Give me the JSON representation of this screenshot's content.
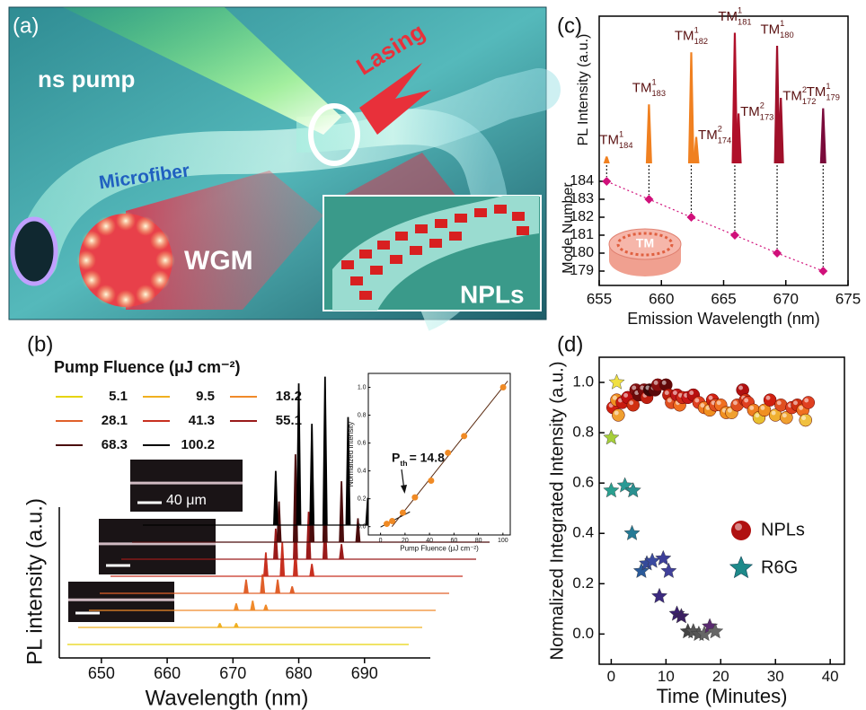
{
  "illustration": {
    "label": "(a)",
    "pump": "ns pump",
    "lasing": "Lasing",
    "fiber": "Microfiber",
    "wgm": "WGM",
    "npls": "NPLs"
  },
  "chart_data": [
    {
      "type": "modes",
      "label": "(c)",
      "xlabel": "Emission Wavelength (nm)",
      "ylabel": "Mode Number",
      "spectrum_ylabel": "PL Intensity (a.u.)",
      "xlim": [
        655,
        675
      ],
      "xticks": [
        655,
        660,
        665,
        670,
        675
      ],
      "ylim": [
        178.2,
        184.6
      ],
      "yticks": [
        179,
        180,
        181,
        182,
        183,
        184
      ],
      "spectrum": {
        "x": [
          655.6,
          659.0,
          662.4,
          662.8,
          665.9,
          666.2,
          669.3,
          669.6,
          673.0
        ],
        "values": [
          0.05,
          0.45,
          0.85,
          0.2,
          1.0,
          0.38,
          0.9,
          0.5,
          0.42
        ],
        "colors": [
          "#f08020",
          "#f08020",
          "#f08020",
          "#f08020",
          "#b0102a",
          "#b0102a",
          "#a0102a",
          "#a0102a",
          "#7a0a3a"
        ]
      },
      "peak_labels": [
        {
          "text": "TM",
          "sub": "184",
          "sup": "1"
        },
        {
          "text": "TM",
          "sub": "183",
          "sup": "1"
        },
        {
          "text": "TM",
          "sub": "182",
          "sup": "1"
        },
        {
          "text": "TM",
          "sub": "174",
          "sup": "2"
        },
        {
          "text": "TM",
          "sub": "181",
          "sup": "1"
        },
        {
          "text": "TM",
          "sub": "173",
          "sup": "2"
        },
        {
          "text": "TM",
          "sub": "180",
          "sup": "1"
        },
        {
          "text": "TM",
          "sub": "172",
          "sup": "2"
        },
        {
          "text": "TM",
          "sub": "179",
          "sup": "1"
        }
      ],
      "x": [
        655.6,
        659.0,
        662.4,
        665.9,
        669.3,
        673.0
      ],
      "values": [
        184,
        183,
        182,
        181,
        180,
        179
      ],
      "color": "#d0107a",
      "inset_label": "TM"
    },
    {
      "type": "waterfall",
      "label": "(b)",
      "xlabel": "Wavelength (nm)",
      "ylabel": "PL intensity (a.u.)",
      "legend_title": "Pump Fluence (μJ cm⁻²)",
      "scale_bar": "40 μm",
      "xlim": [
        643.6,
        700
      ],
      "xticks": [
        650,
        660,
        670,
        680,
        690
      ],
      "series": [
        {
          "name": "5.1",
          "color": "#e6d40a",
          "x": [],
          "values": []
        },
        {
          "name": "9.5",
          "color": "#f0b020",
          "x": [
            668,
            670.5
          ],
          "values": [
            0.06,
            0.06
          ]
        },
        {
          "name": "18.2",
          "color": "#f08a2a",
          "x": [
            670.5,
            673,
            675
          ],
          "values": [
            0.1,
            0.14,
            0.08
          ]
        },
        {
          "name": "28.1",
          "color": "#e0602a",
          "x": [
            672,
            674.5,
            676.8,
            679
          ],
          "values": [
            0.2,
            0.28,
            0.2,
            0.1
          ]
        },
        {
          "name": "41.3",
          "color": "#c83020",
          "x": [
            675,
            677.5,
            679.5,
            682
          ],
          "values": [
            0.35,
            0.5,
            0.4,
            0.18
          ]
        },
        {
          "name": "55.1",
          "color": "#9a1a1a",
          "x": [
            676.5,
            679.5,
            681.5,
            684,
            686.5
          ],
          "values": [
            0.45,
            0.8,
            0.7,
            0.55,
            0.22
          ]
        },
        {
          "name": "68.3",
          "color": "#4a0c0c",
          "x": [
            677,
            679.5,
            682,
            684,
            686.5,
            689
          ],
          "values": [
            0.6,
            1.3,
            1.0,
            1.4,
            0.9,
            0.35
          ]
        },
        {
          "name": "100.2",
          "color": "#000000",
          "x": [
            676.5,
            680,
            682,
            684,
            687.5,
            690.5
          ],
          "values": [
            0.8,
            2.1,
            1.5,
            2.2,
            1.6,
            0.4
          ]
        }
      ]
    },
    {
      "type": "scatter",
      "xlabel": "Pump Fluence (μJ cm⁻²)",
      "ylabel": "Normalized Intensity",
      "xlim": [
        -10,
        106
      ],
      "xticks": [
        0,
        20,
        40,
        60,
        80,
        100
      ],
      "ylim": [
        -0.06,
        1.1
      ],
      "yticks": [
        {
          "value": 0,
          "label": "0.0"
        },
        0.2,
        0.4,
        0.6,
        0.8,
        {
          "value": 1,
          "label": "1.0"
        }
      ],
      "x": [
        5.1,
        9.5,
        18.2,
        28.1,
        41.3,
        55.1,
        68.3,
        100.2
      ],
      "values": [
        0.02,
        0.04,
        0.1,
        0.21,
        0.33,
        0.53,
        0.65,
        1.0
      ],
      "color": "#f08a24",
      "annotation": {
        "text": "P",
        "sub": "th",
        "rest": "= 14.8"
      }
    },
    {
      "type": "scatter",
      "label": "(d)",
      "xlabel": "Time (Minutes)",
      "ylabel": "Normalized Integrated Intensity (a.u.)",
      "xlim": [
        -2.2,
        42.6
      ],
      "xticks": [
        0,
        10,
        20,
        30,
        40
      ],
      "ylim": [
        -0.12,
        1.1
      ],
      "yticks": [
        {
          "value": 0,
          "label": "0.0"
        },
        0.2,
        0.4,
        0.6,
        0.8,
        {
          "value": 1,
          "label": "1.0"
        }
      ],
      "legend": "right",
      "series": [
        {
          "name": "NPLs",
          "color": "#b01010",
          "marker": "sphere",
          "x": [
            0.3,
            1,
            1.3,
            2,
            3,
            4,
            4.5,
            5,
            6,
            6.5,
            7,
            8,
            8.5,
            10,
            10.5,
            11,
            12,
            12.5,
            13,
            14,
            15,
            16,
            17,
            18,
            18.5,
            19,
            20,
            21,
            22,
            23,
            24,
            24.5,
            25,
            26,
            27,
            28,
            29,
            30,
            31,
            32,
            33,
            34,
            35,
            35.5,
            36
          ],
          "values": [
            0.9,
            0.93,
            0.87,
            0.92,
            0.94,
            0.91,
            0.97,
            0.95,
            0.97,
            0.94,
            0.97,
            0.97,
            0.99,
            0.99,
            0.95,
            0.92,
            0.95,
            0.91,
            0.94,
            0.94,
            0.95,
            0.92,
            0.9,
            0.89,
            0.93,
            0.91,
            0.91,
            0.88,
            0.88,
            0.91,
            0.97,
            0.93,
            0.92,
            0.89,
            0.86,
            0.89,
            0.93,
            0.87,
            0.91,
            0.86,
            0.9,
            0.91,
            0.89,
            0.85,
            0.92
          ],
          "colors": [
            "#d02010",
            "#f09020",
            "#f0a030",
            "#c81a10",
            "#c01010",
            "#d03010",
            "#801010",
            "#6a0a0a",
            "#7a0c0c",
            "#c02010",
            "#3a0808",
            "#5a0a0a",
            "#8a1010",
            "#600808",
            "#c02010",
            "#e05020",
            "#c01818",
            "#f07020",
            "#d02818",
            "#c81818",
            "#b81010",
            "#e04020",
            "#f07a20",
            "#f09020",
            "#d02010",
            "#e05020",
            "#f07020",
            "#f09020",
            "#f0a030",
            "#e05020",
            "#b01010",
            "#d03010",
            "#e04020",
            "#f08020",
            "#e8c030",
            "#f09020",
            "#d02010",
            "#f0b030",
            "#e05020",
            "#f0a030",
            "#e04020",
            "#d03010",
            "#f07020",
            "#f0c040",
            "#e04020"
          ]
        },
        {
          "name": "R6G",
          "color": "#1e8a8a",
          "marker": "star",
          "x": [
            1,
            0,
            0,
            2.5,
            4,
            3.8,
            5.5,
            6.5,
            7.5,
            9.5,
            10.5,
            8.8,
            12,
            12.8,
            14,
            15,
            16,
            17,
            18,
            19
          ],
          "values": [
            1.0,
            0.78,
            0.57,
            0.59,
            0.57,
            0.4,
            0.25,
            0.28,
            0.29,
            0.3,
            0.25,
            0.15,
            0.08,
            0.07,
            0.01,
            0.01,
            0.0,
            0.0,
            0.03,
            0.01
          ],
          "colors": [
            "#f0e040",
            "#a6cf3a",
            "#2aa090",
            "#2a9a95",
            "#2a9090",
            "#257a95",
            "#2a5a9a",
            "#354a9a",
            "#3a4aa0",
            "#3d3f98",
            "#40409a",
            "#3c2a80",
            "#3a1f6e",
            "#3a1f60",
            "#444444",
            "#555555",
            "#555555",
            "#666666",
            "#5a2a70",
            "#666666"
          ]
        }
      ]
    }
  ]
}
